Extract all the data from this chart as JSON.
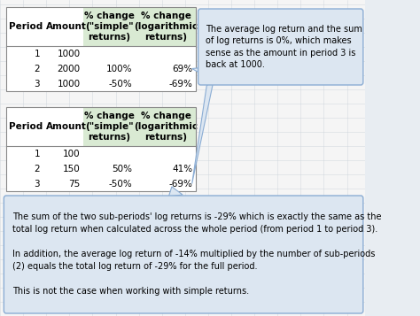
{
  "bg_color": "#e8edf2",
  "spreadsheet_bg": "#f5f5f5",
  "cell_bg": "#ffffff",
  "header_green": "#d9ead3",
  "callout_bg": "#dce6f1",
  "callout_border": "#8badd4",
  "grid_color": "#c8d0d8",
  "text_color": "#000000",
  "table1": {
    "headers": [
      "Period",
      "Amount",
      "% change\n(\"simple\"\nreturns)",
      "% change\n(logarithmic\nreturns)"
    ],
    "rows": [
      [
        "1",
        "1000",
        "",
        ""
      ],
      [
        "2",
        "2000",
        "100%",
        "69%"
      ],
      [
        "3",
        "1000",
        "-50%",
        "-69%"
      ]
    ]
  },
  "table2": {
    "headers": [
      "Period",
      "Amount",
      "% change\n(\"simple\"\nreturns)",
      "% change\n(logarithmic\nreturns)"
    ],
    "rows": [
      [
        "1",
        "100",
        "",
        ""
      ],
      [
        "2",
        "150",
        "50%",
        "41%"
      ],
      [
        "3",
        "75",
        "-50%",
        "-69%"
      ]
    ]
  },
  "callout_top_text": "The average log return and the sum\nof log returns is 0%, which makes\nsense as the amount in period 3 is\nback at 1000.",
  "callout_bottom_text": "The sum of the two sub-periods' log returns is -29% which is exactly the same as the\ntotal log return when calculated across the whole period (from period 1 to period 3).\n\nIn addition, the average log return of -14% multiplied by the number of sub-periods\n(2) equals the total log return of -29% for the full period.\n\nThis is not the case when working with simple returns."
}
